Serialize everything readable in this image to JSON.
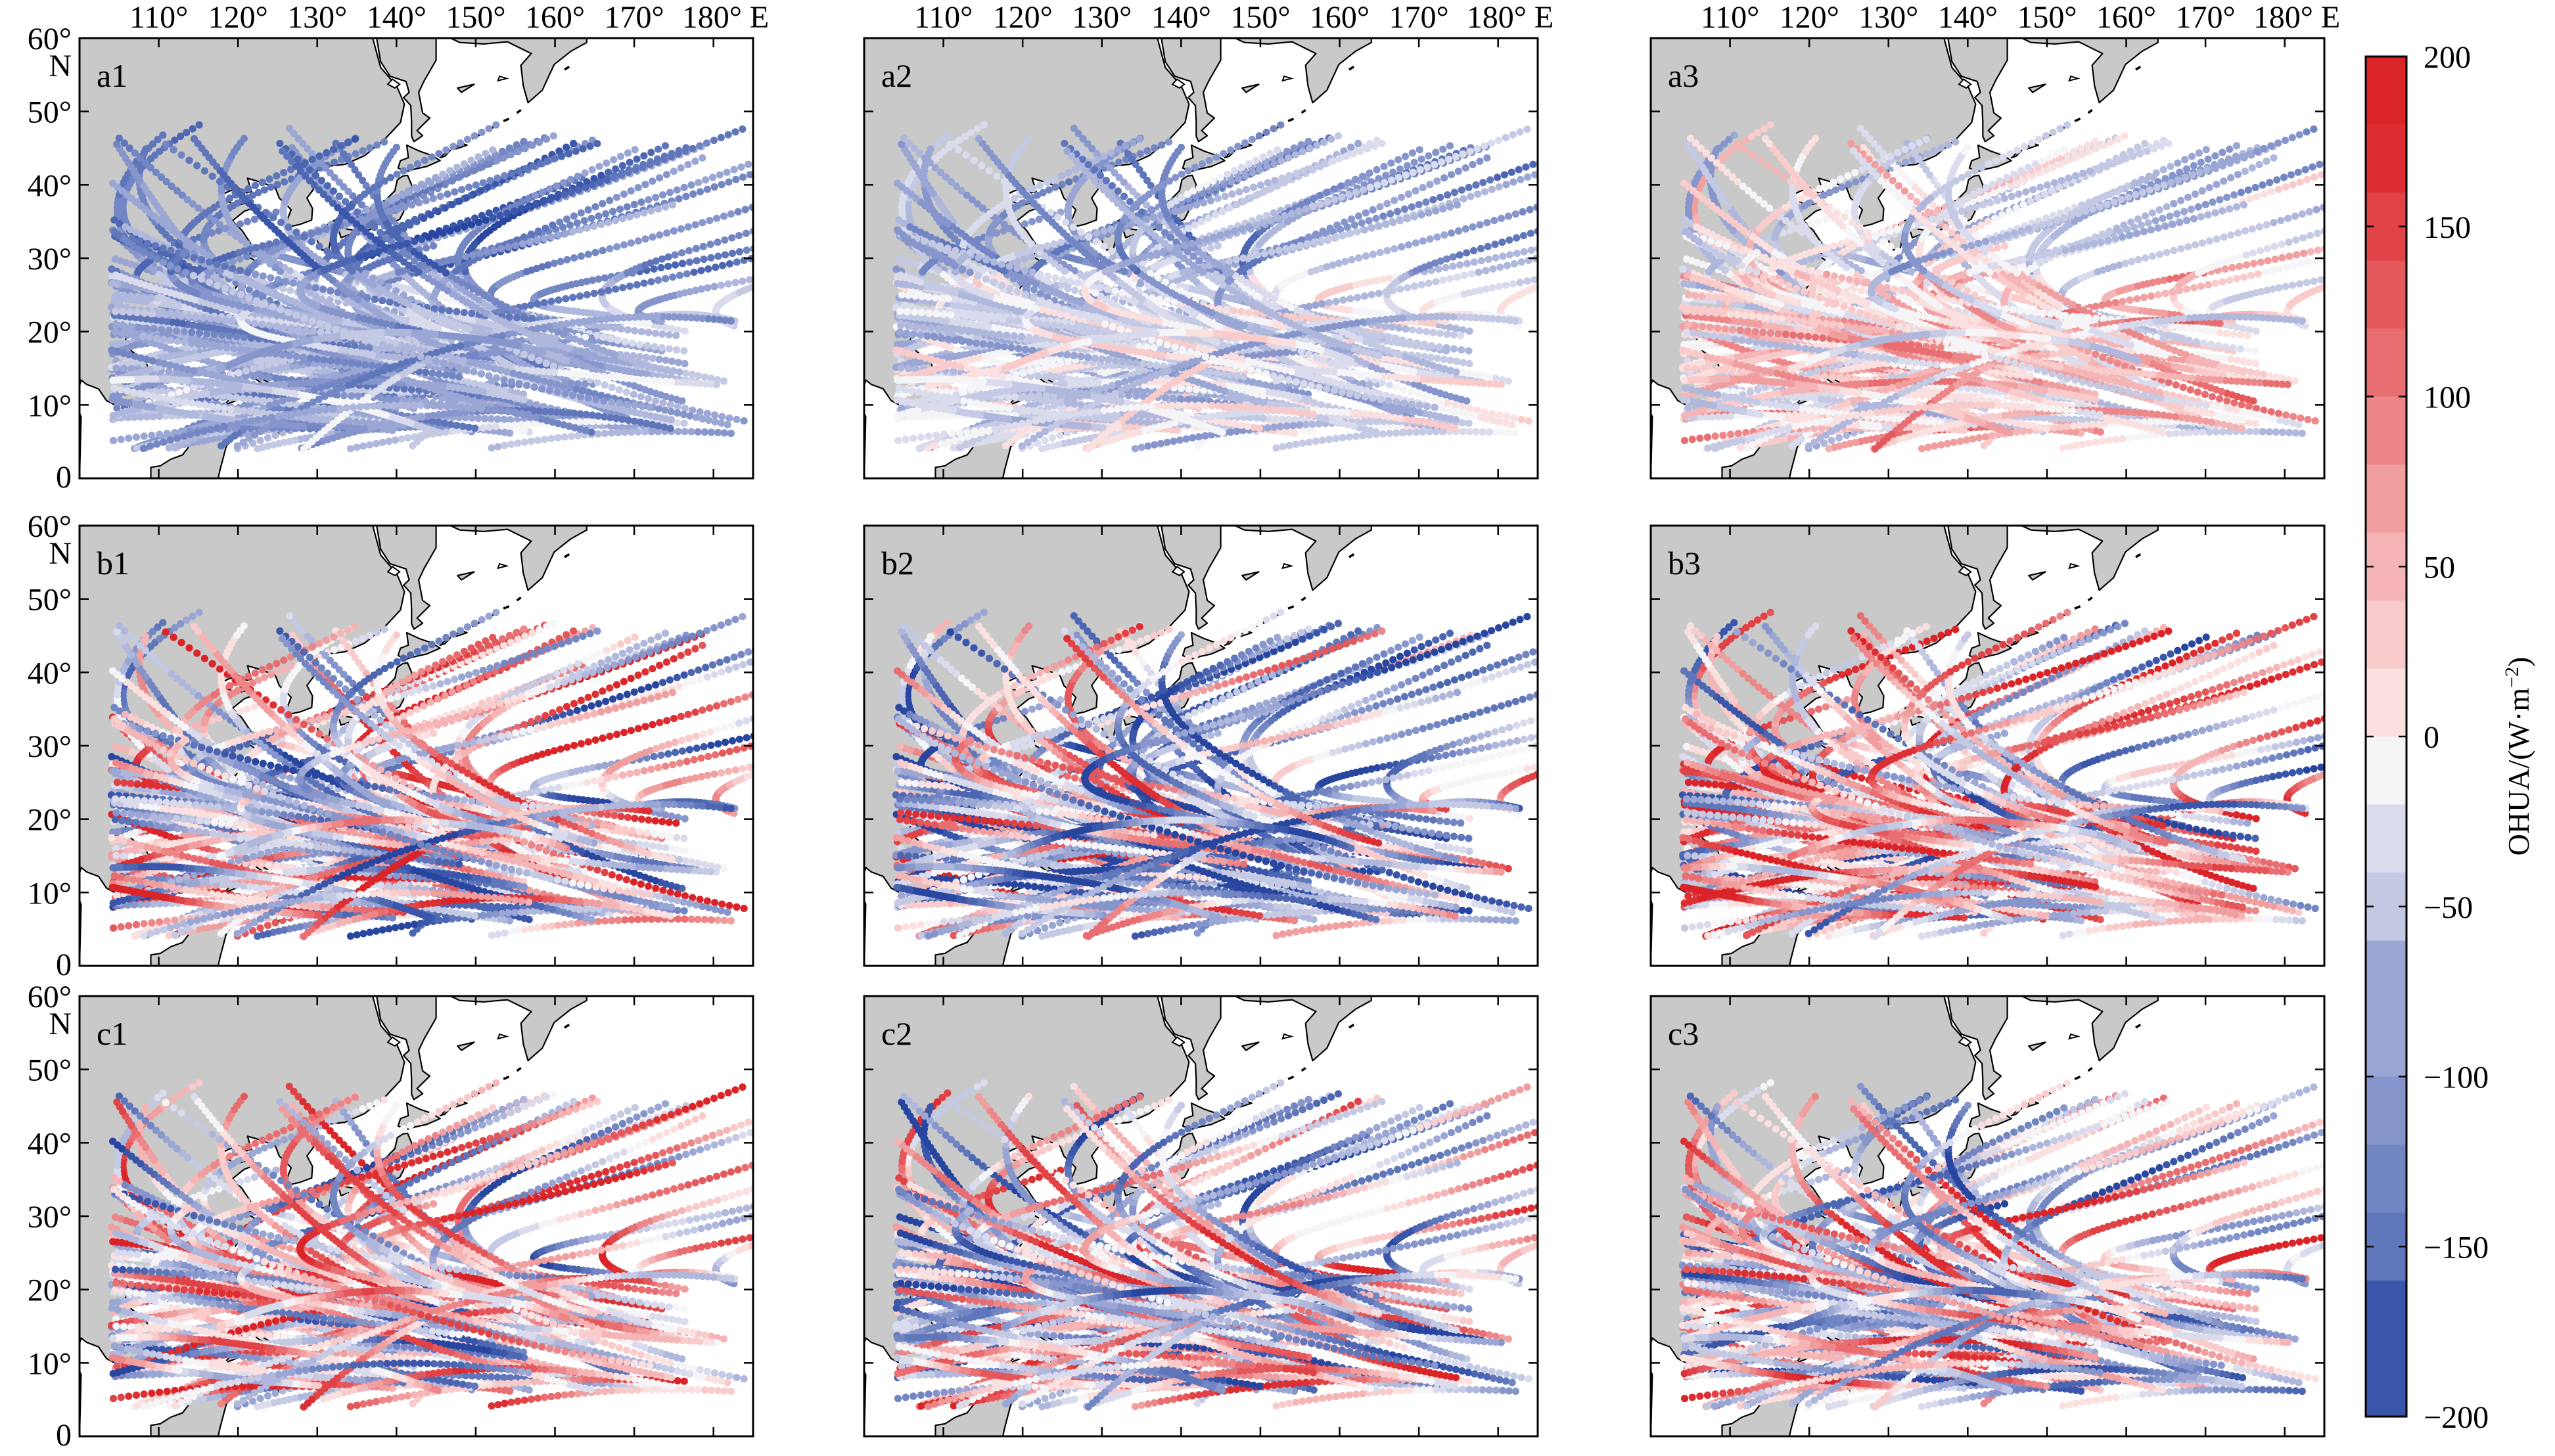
{
  "figure": {
    "panels": [
      {
        "id": "a1",
        "label": "a1",
        "row": 0,
        "col": 0,
        "seed": 11,
        "bias": -0.35,
        "amp": 0.35
      },
      {
        "id": "a2",
        "label": "a2",
        "row": 0,
        "col": 1,
        "seed": 23,
        "bias": -0.15,
        "amp": 0.35
      },
      {
        "id": "a3",
        "label": "a3",
        "row": 0,
        "col": 2,
        "seed": 37,
        "bias": 0.15,
        "amp": 0.45
      },
      {
        "id": "b1",
        "label": "b1",
        "row": 1,
        "col": 0,
        "seed": 41,
        "bias": 0.0,
        "amp": 1.0
      },
      {
        "id": "b2",
        "label": "b2",
        "row": 1,
        "col": 1,
        "seed": 53,
        "bias": -0.15,
        "amp": 1.0
      },
      {
        "id": "b3",
        "label": "b3",
        "row": 1,
        "col": 2,
        "seed": 67,
        "bias": 0.1,
        "amp": 1.0
      },
      {
        "id": "c1",
        "label": "c1",
        "row": 2,
        "col": 0,
        "seed": 71,
        "bias": 0.05,
        "amp": 1.0
      },
      {
        "id": "c2",
        "label": "c2",
        "row": 2,
        "col": 1,
        "seed": 83,
        "bias": -0.05,
        "amp": 1.0
      },
      {
        "id": "c3",
        "label": "c3",
        "row": 2,
        "col": 2,
        "seed": 97,
        "bias": 0.05,
        "amp": 1.0
      }
    ],
    "x_ticks": [
      "110°",
      "120°",
      "130°",
      "140°",
      "150°",
      "160°",
      "170°",
      "180° E"
    ],
    "y_ticks": [
      "60°",
      "N",
      "50°",
      "40°",
      "30°",
      "20°",
      "10°",
      "0"
    ],
    "colorbar": {
      "title": "OHUA/(W·m",
      "title_sup": "−2",
      "title_close": ")",
      "ticks": [
        "200",
        "150",
        "100",
        "50",
        "0",
        "−50",
        "−100",
        "−150",
        "−200"
      ],
      "min": -200,
      "max": 200,
      "levels": 20
    },
    "colors": {
      "land": "#c8c9c8",
      "coast": "#000000",
      "frame": "#000000",
      "cmap": [
        "#2846a0",
        "#3a56aa",
        "#4d66b2",
        "#5f76bb",
        "#7286c3",
        "#8696cc",
        "#9aa6d3",
        "#afb7dc",
        "#c4c9e4",
        "#dadced",
        "#f5f5f7",
        "#fbe0e0",
        "#f9cbcb",
        "#f5b5b6",
        "#f19e9f",
        "#ed8688",
        "#e96e71",
        "#e4575a",
        "#e14245",
        "#dd2e31",
        "#db2428"
      ]
    }
  }
}
